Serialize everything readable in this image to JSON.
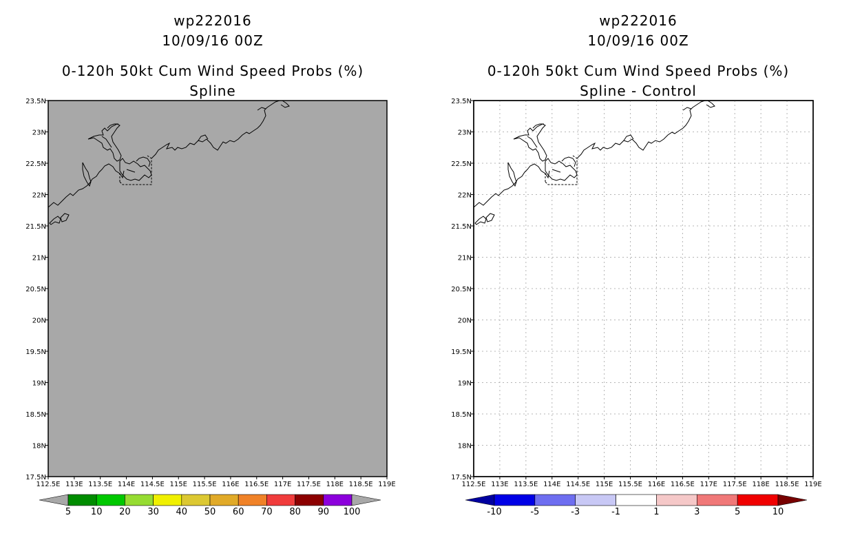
{
  "panels": [
    {
      "storm_id": "wp222016",
      "datetime": "10/09/16 00Z",
      "product": "0-120h 50kt Cum Wind Speed Probs (%)",
      "subtitle": "Spline",
      "background": "#a8a8a8",
      "grid": false,
      "colorbar": {
        "colors": [
          "#008c00",
          "#00c800",
          "#96dc32",
          "#f0f000",
          "#dcc832",
          "#e1aa28",
          "#f08228",
          "#f03c3c",
          "#8c0000",
          "#8c00dc"
        ],
        "ends": [
          "#a8a8a8",
          "#a8a8a8"
        ],
        "labels": [
          "5",
          "10",
          "20",
          "30",
          "40",
          "50",
          "60",
          "70",
          "80",
          "90",
          "100"
        ]
      }
    },
    {
      "storm_id": "wp222016",
      "datetime": "10/09/16 00Z",
      "product": "0-120h 50kt Cum Wind Speed Probs (%)",
      "subtitle": "Spline - Control",
      "background": "#ffffff",
      "grid": true,
      "colorbar": {
        "colors": [
          "#0000e6",
          "#6e6ef0",
          "#c8c8f5",
          "#ffffff",
          "#f5c8c8",
          "#f07878",
          "#f00000"
        ],
        "ends": [
          "#0000a0",
          "#780000"
        ],
        "labels": [
          "-10",
          "-5",
          "-3",
          "-1",
          "1",
          "3",
          "5",
          "10"
        ]
      }
    }
  ],
  "axes": {
    "lon_labels": [
      "112.5E",
      "113E",
      "113.5E",
      "114E",
      "114.5E",
      "115E",
      "115.5E",
      "116E",
      "116.5E",
      "117E",
      "117.5E",
      "118E",
      "118.5E",
      "119E"
    ],
    "lat_labels": [
      "23.5N",
      "23N",
      "22.5N",
      "22N",
      "21.5N",
      "21N",
      "20.5N",
      "20N",
      "19.5N",
      "19N",
      "18.5N",
      "18N",
      "17.5N"
    ]
  }
}
